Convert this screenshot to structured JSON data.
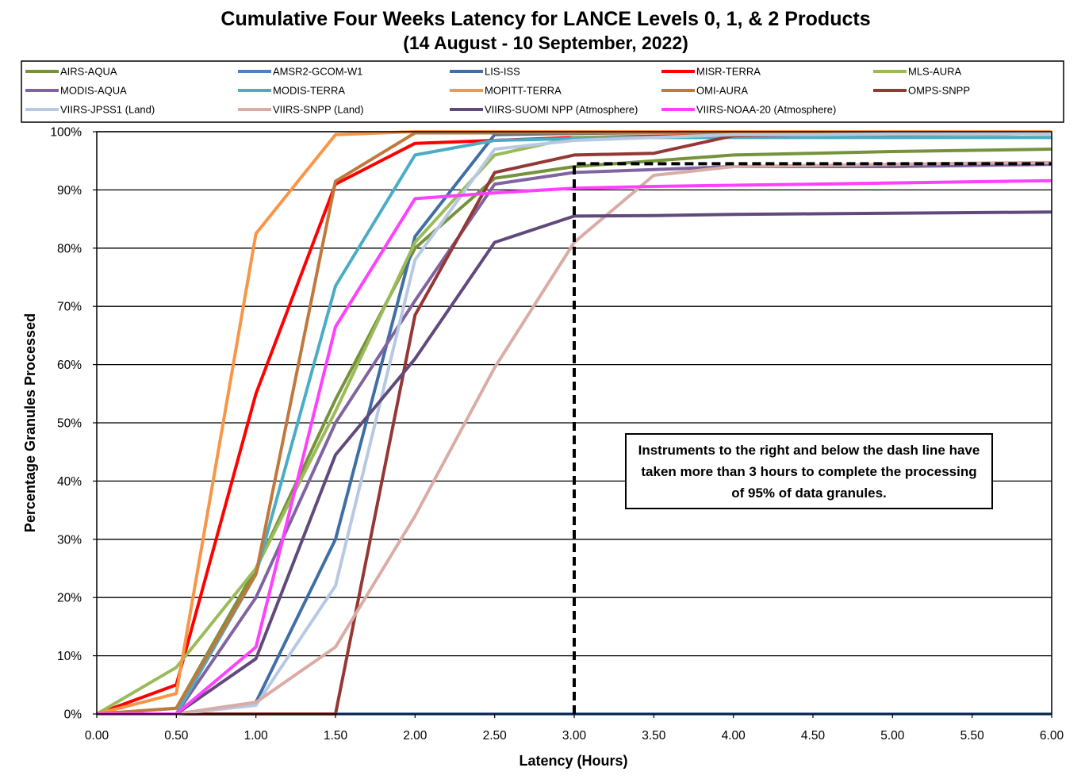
{
  "title": "Cumulative Four Weeks Latency  for LANCE Levels 0, 1, & 2 Products",
  "subtitle": "(14  August   -  10  September,  2022)",
  "chart_data": {
    "type": "line",
    "title": "Cumulative Four Weeks Latency  for LANCE Levels 0, 1, & 2 Products",
    "subtitle": "(14  August   -  10  September,  2022)",
    "xlabel": "Latency (Hours)",
    "ylabel": "Percentage Granules Processed",
    "xlim": [
      0,
      6
    ],
    "ylim": [
      0,
      100
    ],
    "x_ticks": [
      "0.00",
      "0.50",
      "1.00",
      "1.50",
      "2.00",
      "2.50",
      "3.00",
      "3.50",
      "4.00",
      "4.50",
      "5.00",
      "5.50",
      "6.00"
    ],
    "y_ticks": [
      "0%",
      "10%",
      "20%",
      "30%",
      "40%",
      "50%",
      "60%",
      "70%",
      "80%",
      "90%",
      "100%"
    ],
    "grid": "horizontal",
    "legend_position": "top",
    "x": [
      0,
      0.5,
      1,
      1.5,
      2,
      2.5,
      3,
      3.5,
      4,
      4.5,
      5,
      5.5,
      6
    ],
    "series": [
      {
        "name": "AIRS-AQUA",
        "color": "#76923c",
        "values": [
          0,
          1,
          25,
          54,
          80,
          92,
          94,
          95,
          96,
          96.3,
          96.6,
          96.8,
          97
        ]
      },
      {
        "name": "AMSR2-GCOM-W1",
        "color": "#4f81bd",
        "values": [
          0,
          0,
          0,
          0,
          0,
          0,
          0,
          0,
          0,
          0,
          0,
          0,
          0
        ]
      },
      {
        "name": "LIS-ISS",
        "color": "#3f6fa5",
        "values": [
          0,
          0,
          2,
          30,
          82,
          99.5,
          99.7,
          99.8,
          99.8,
          99.8,
          99.9,
          99.9,
          99.9
        ]
      },
      {
        "name": "MISR-TERRA",
        "color": "#ff0000",
        "values": [
          0,
          5,
          55,
          91,
          98,
          98.5,
          99,
          99.2,
          99.3,
          99.4,
          99.5,
          99.6,
          99.7
        ]
      },
      {
        "name": "MLS-AURA",
        "color": "#9bbb59",
        "values": [
          0,
          8,
          25,
          52,
          81,
          96,
          99,
          99,
          99,
          99,
          99,
          99,
          99
        ]
      },
      {
        "name": "MODIS-AQUA",
        "color": "#8064a2",
        "values": [
          0,
          0,
          20,
          50,
          71,
          91,
          93,
          93.5,
          94,
          94,
          94,
          94.2,
          94.4
        ]
      },
      {
        "name": "MODIS-TERRA",
        "color": "#4bacc6",
        "values": [
          0,
          0,
          24,
          73.5,
          96,
          98.5,
          98.8,
          99,
          99,
          99,
          99,
          99,
          99
        ]
      },
      {
        "name": "MOPITT-TERRA",
        "color": "#f79646",
        "values": [
          0,
          3.5,
          82.5,
          99.5,
          100,
          100,
          100,
          100,
          100,
          100,
          100,
          100,
          100
        ]
      },
      {
        "name": "OMI-AURA",
        "color": "#c0783c",
        "values": [
          0,
          1,
          24,
          91.5,
          99.8,
          99.8,
          99.8,
          99.8,
          99.8,
          99.8,
          99.8,
          99.8,
          99.8
        ]
      },
      {
        "name": "OMPS-SNPP",
        "color": "#953735",
        "values": [
          0,
          0,
          0,
          0,
          68.5,
          93,
          96,
          96.3,
          99.3,
          99.5,
          99.6,
          99.6,
          99.7
        ]
      },
      {
        "name": "VIIRS-JPSS1 (Land)",
        "color": "#b7c9e2",
        "values": [
          0,
          0,
          1.5,
          22,
          78,
          97,
          98.5,
          99,
          99.5,
          99.5,
          99.6,
          99.6,
          99.7
        ]
      },
      {
        "name": "VIIRS-SNPP (Land)",
        "color": "#d9aca5",
        "values": [
          0,
          0,
          2,
          11.5,
          34,
          59.5,
          81,
          92.5,
          94,
          94.2,
          94.4,
          94.6,
          94.7
        ]
      },
      {
        "name": "VIIRS-SUOMI NPP (Atmosphere)",
        "color": "#604a7b",
        "values": [
          0,
          0,
          9.5,
          44.5,
          61,
          81,
          85.5,
          85.6,
          85.8,
          85.9,
          86,
          86.1,
          86.2
        ]
      },
      {
        "name": "VIIRS-NOAA-20 (Atmosphere)",
        "color": "#ff40ff",
        "values": [
          0,
          0,
          11.5,
          66.5,
          88.5,
          89.5,
          90.3,
          90.6,
          90.8,
          91,
          91.2,
          91.4,
          91.6
        ]
      }
    ],
    "reference_line": {
      "style": "dashed",
      "color": "#000000",
      "x": [
        3,
        3,
        6
      ],
      "y": [
        0,
        94.5,
        94.5
      ]
    },
    "annotation": "Instruments to the right and below the dash line have taken more than 3 hours to complete the processing of 95% of data granules."
  }
}
